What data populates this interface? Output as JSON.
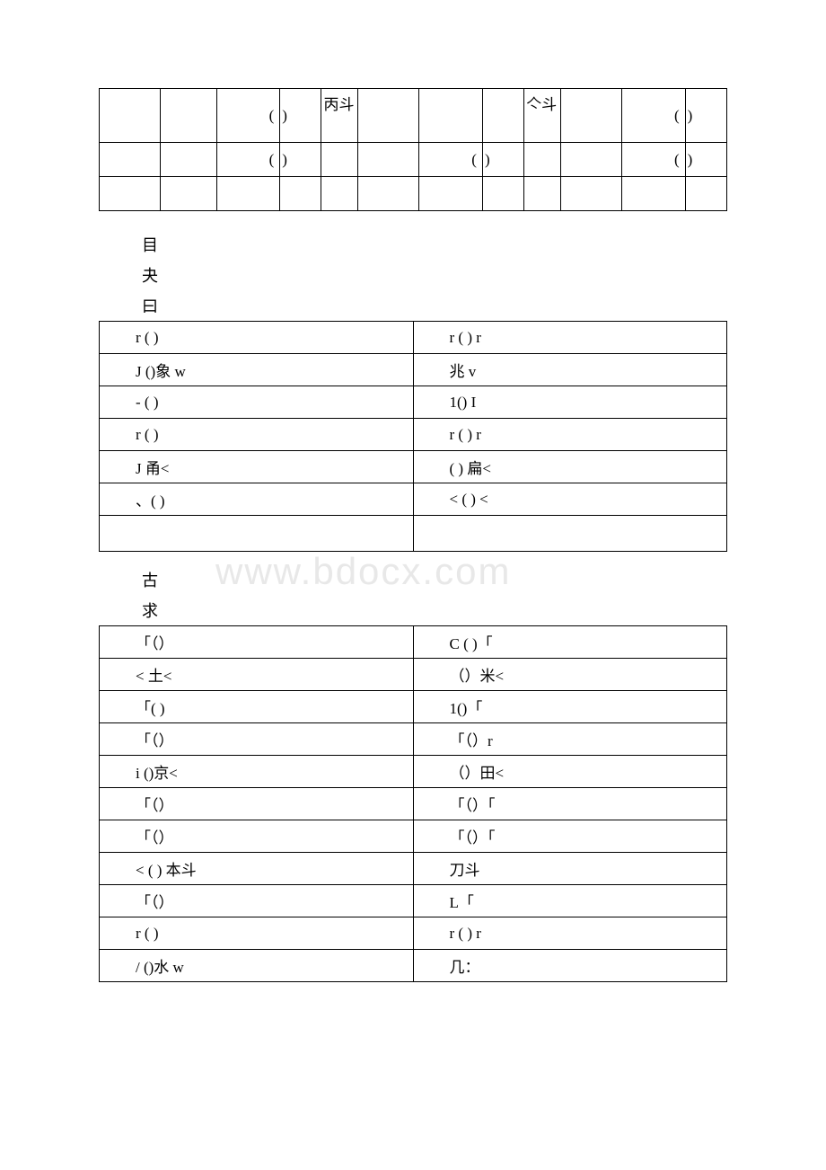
{
  "table1": {
    "row1": {
      "c3": "(",
      "c4": ")",
      "c5": "丙斗",
      "c9": "亽斗",
      "c11": "(",
      "c12": ")"
    },
    "row2": {
      "c3": "(",
      "c4": ")",
      "c7": "(",
      "c8": ")",
      "c11": "(",
      "c12": ")"
    }
  },
  "spacer1": [
    "目",
    "夬",
    "曰"
  ],
  "table2": {
    "rows": [
      [
        "r ( )",
        "r ( ) r"
      ],
      [
        "J ()象 w",
        "兆 v"
      ],
      [
        "- ( )",
        "1() I"
      ],
      [
        "r ( )",
        "r ( ) r"
      ],
      [
        "J 甬<",
        "( ) 扁<"
      ],
      [
        "、( )",
        "< ( ) <"
      ],
      [
        "",
        ""
      ]
    ]
  },
  "spacer2": [
    "古",
    "求"
  ],
  "table3": {
    "rows": [
      [
        "「（）",
        "C ( )「"
      ],
      [
        "< 土<",
        "（）米<"
      ],
      [
        "「( )",
        "1()「"
      ],
      [
        "「（）",
        "「（）r"
      ],
      [
        "i ()京<",
        "（）田<"
      ],
      [
        "「（）",
        "「（）「"
      ],
      [
        "「（）",
        "「（）「"
      ],
      [
        "< ( ) 本斗",
        "刀斗"
      ],
      [
        "「（）",
        "L「"
      ],
      [
        "r ( )",
        "r ( ) r"
      ],
      [
        "/ ()水 w",
        "几："
      ]
    ]
  },
  "watermark": "www.bdocx.com"
}
